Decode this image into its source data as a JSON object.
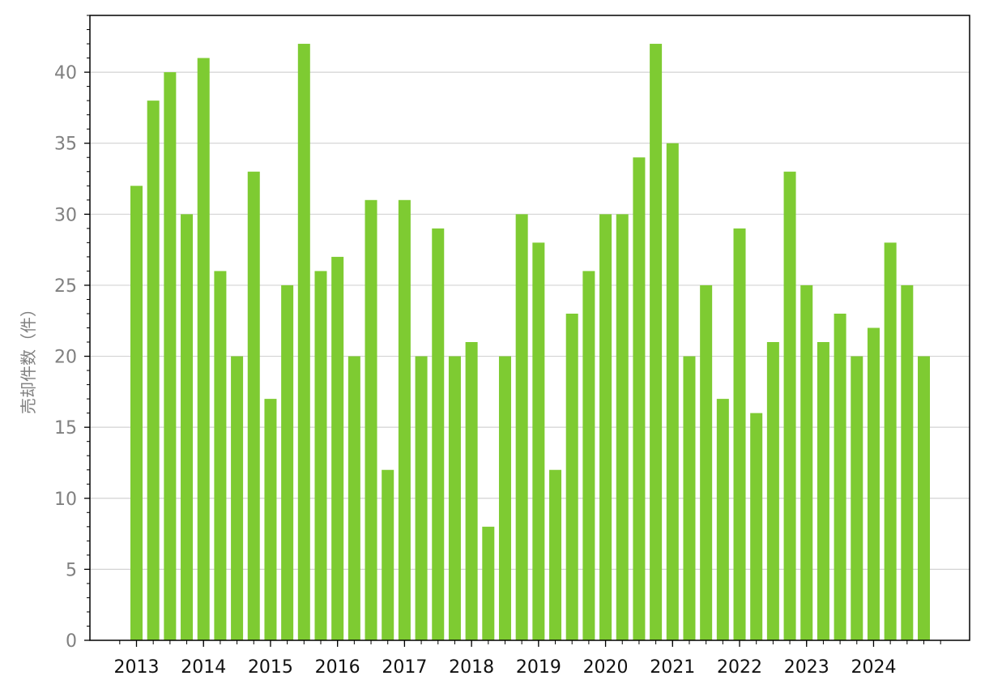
{
  "chart_data": {
    "type": "bar",
    "title": "",
    "xlabel": "",
    "ylabel": "売却件数（件）",
    "ylim": [
      0,
      44
    ],
    "yticks": [
      0,
      5,
      10,
      15,
      20,
      25,
      30,
      35,
      40
    ],
    "x_tick_labels": [
      "2013",
      "2014",
      "2015",
      "2016",
      "2017",
      "2018",
      "2019",
      "2020",
      "2021",
      "2022",
      "2023",
      "2024"
    ],
    "grid": "horizontal",
    "bar_color": "#7ecb32",
    "values": [
      32,
      38,
      40,
      30,
      41,
      26,
      20,
      33,
      17,
      25,
      42,
      26,
      27,
      20,
      31,
      12,
      31,
      20,
      29,
      20,
      21,
      8,
      20,
      30,
      28,
      12,
      23,
      26,
      30,
      30,
      34,
      42,
      35,
      20,
      25,
      17,
      29,
      16,
      21,
      33,
      25,
      21,
      23,
      20,
      22,
      28,
      25,
      20
    ]
  }
}
